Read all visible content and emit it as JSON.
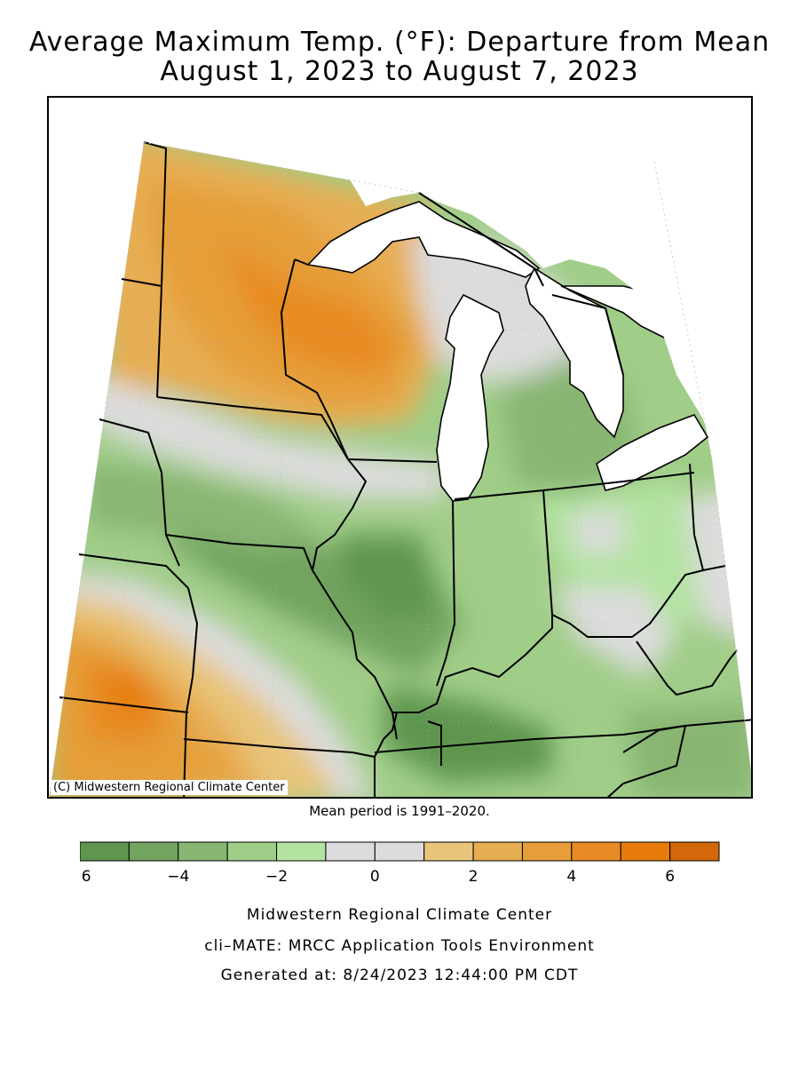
{
  "title": {
    "line1": "Average Maximum Temp. (°F): Departure from Mean",
    "line2": "August 1, 2023 to August 7, 2023"
  },
  "map": {
    "credit": "(C) Midwestern Regional Climate Center",
    "regions_shown": [
      "Minnesota",
      "Wisconsin",
      "Michigan",
      "Iowa",
      "Illinois",
      "Indiana",
      "Ohio",
      "Missouri",
      "Kentucky"
    ]
  },
  "mean_note": "Mean period is 1991–2020.",
  "legend": {
    "bins": [
      {
        "from": -6,
        "to": -5,
        "color": "#5e9650"
      },
      {
        "from": -5,
        "to": -4,
        "color": "#72a35f"
      },
      {
        "from": -4,
        "to": -3,
        "color": "#88b672"
      },
      {
        "from": -3,
        "to": -2,
        "color": "#a0cd88"
      },
      {
        "from": -2,
        "to": -1,
        "color": "#b4e3a1"
      },
      {
        "from": -1,
        "to": 0,
        "color": "#dcdcdc"
      },
      {
        "from": 0,
        "to": 1,
        "color": "#dcdcdc"
      },
      {
        "from": 1,
        "to": 2,
        "color": "#e8c47a"
      },
      {
        "from": 2,
        "to": 3,
        "color": "#e7ad52"
      },
      {
        "from": 3,
        "to": 4,
        "color": "#e59e39"
      },
      {
        "from": 4,
        "to": 5,
        "color": "#e88b24"
      },
      {
        "from": 5,
        "to": 6,
        "color": "#e67b0c"
      },
      {
        "from": 6,
        "to": 7,
        "color": "#d3680a"
      }
    ],
    "tick_labels": [
      "−6",
      "−4",
      "−2",
      "0",
      "2",
      "4",
      "6"
    ],
    "tick_values": [
      -6,
      -4,
      -2,
      0,
      2,
      4,
      6
    ]
  },
  "footer": {
    "line1": "Midwestern Regional Climate Center",
    "line2": "cli–MATE: MRCC Application Tools Environment",
    "line3": "Generated at: 8/24/2023 12:44:00 PM CDT"
  }
}
